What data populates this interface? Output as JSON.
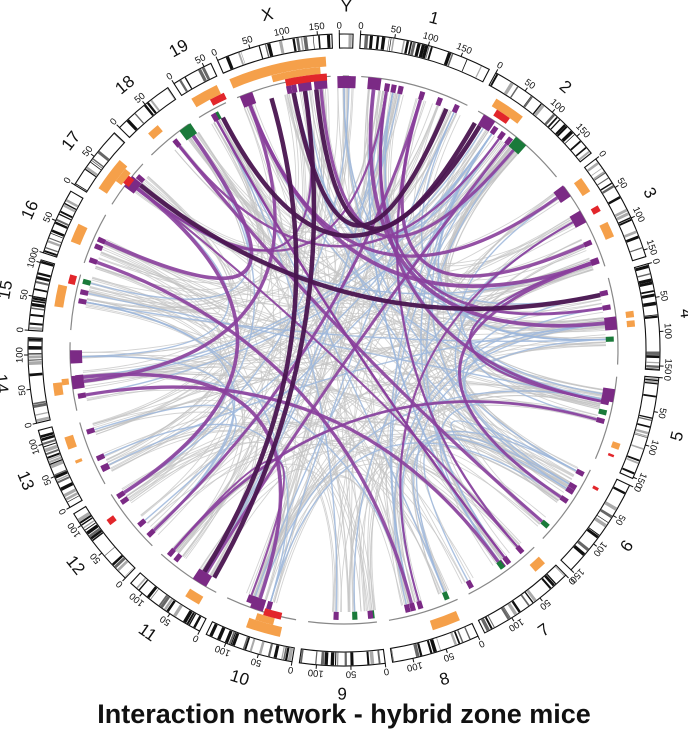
{
  "title": "Interaction network - hybrid zone mice",
  "chromosomes": [
    {
      "name": "1",
      "length": 195
    },
    {
      "name": "2",
      "length": 182
    },
    {
      "name": "3",
      "length": 160
    },
    {
      "name": "4",
      "length": 156
    },
    {
      "name": "5",
      "length": 152
    },
    {
      "name": "6",
      "length": 150
    },
    {
      "name": "7",
      "length": 145
    },
    {
      "name": "8",
      "length": 130
    },
    {
      "name": "9",
      "length": 125
    },
    {
      "name": "10",
      "length": 131
    },
    {
      "name": "11",
      "length": 122
    },
    {
      "name": "12",
      "length": 120
    },
    {
      "name": "13",
      "length": 121
    },
    {
      "name": "14",
      "length": 125
    },
    {
      "name": "15",
      "length": 104
    },
    {
      "name": "16",
      "length": 98
    },
    {
      "name": "17",
      "length": 95
    },
    {
      "name": "18",
      "length": 91
    },
    {
      "name": "19",
      "length": 61
    },
    {
      "name": "X",
      "length": 171
    },
    {
      "name": "Y",
      "length": 20
    }
  ],
  "tick_step_mb": 50,
  "colors": {
    "link_weak": "#c4c4c4",
    "link_mid": "#9db7dc",
    "link_strong": "#8a3f9c",
    "link_strongest": "#4a1550",
    "marker_purple": "#7b2a85",
    "marker_green": "#1a7a3a",
    "bar_orange": "#f5a04a",
    "bar_red": "#e2262b",
    "segment_gray": "#888888"
  }
}
